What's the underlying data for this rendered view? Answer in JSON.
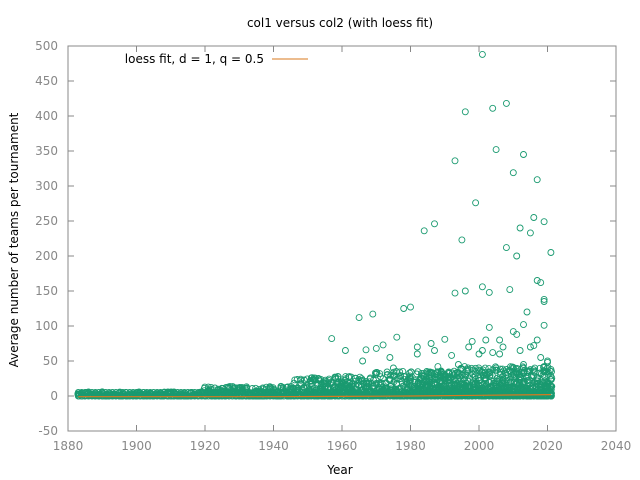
{
  "chart_data": {
    "type": "scatter",
    "title": "col1 versus col2 (with loess fit)",
    "xlabel": "Year",
    "ylabel": "Average number of teams per tournament",
    "xlim": [
      1880,
      2040
    ],
    "ylim": [
      -50,
      500
    ],
    "x_ticks": [
      1880,
      1900,
      1920,
      1940,
      1960,
      1980,
      2000,
      2020,
      2040
    ],
    "y_ticks": [
      -50,
      0,
      50,
      100,
      150,
      200,
      250,
      300,
      350,
      400,
      450,
      500
    ],
    "grid": false,
    "legend_position": "top-left",
    "colors": {
      "points": "#1a9a70",
      "fit": "#d97a1e",
      "axis": "#888888",
      "text": "#000000"
    },
    "series": [
      {
        "name": "",
        "kind": "points",
        "x": [
          1957,
          1961,
          1965,
          1967,
          1969,
          1972,
          1976,
          1978,
          1980,
          1984,
          1987,
          1993,
          1995,
          1996,
          1999,
          2001,
          2001,
          2003,
          2004,
          2005,
          2008,
          2008,
          2010,
          2011,
          2013,
          2016,
          2017,
          2019,
          2019,
          2019,
          1993,
          1996,
          2000,
          2007,
          2010,
          2014,
          2019,
          2021,
          2012,
          2015,
          2017,
          2018,
          2003,
          2009,
          2004,
          2013,
          2017,
          2020,
          1982,
          1986,
          1990,
          1998,
          2001,
          2006,
          2011,
          2016,
          1966,
          1970,
          1974,
          1982,
          1987,
          1992,
          1997,
          2002,
          2006,
          2012,
          2015,
          2018,
          2020,
          1975,
          1988,
          1994,
          2005,
          2013,
          2019
        ],
        "y": [
          82,
          65,
          112,
          66,
          117,
          73,
          84,
          125,
          127,
          236,
          246,
          336,
          223,
          406,
          276,
          488,
          156,
          148,
          411,
          352,
          418,
          212,
          319,
          200,
          345,
          255,
          309,
          249,
          101,
          138,
          147,
          150,
          60,
          70,
          92,
          120,
          135,
          205,
          240,
          233,
          165,
          162,
          98,
          152,
          62,
          102,
          80,
          50,
          70,
          75,
          81,
          78,
          65,
          80,
          88,
          72,
          50,
          68,
          55,
          60,
          65,
          58,
          70,
          80,
          60,
          65,
          70,
          55,
          48,
          40,
          42,
          45,
          40,
          45,
          42
        ]
      },
      {
        "name": "loess fit, d = 1, q = 0.5",
        "kind": "line",
        "x": [
          1883,
          1900,
          1920,
          1940,
          1960,
          1980,
          2000,
          2021
        ],
        "y": [
          -1,
          -1,
          -1,
          -1,
          -0.5,
          0,
          1,
          2
        ]
      }
    ]
  }
}
